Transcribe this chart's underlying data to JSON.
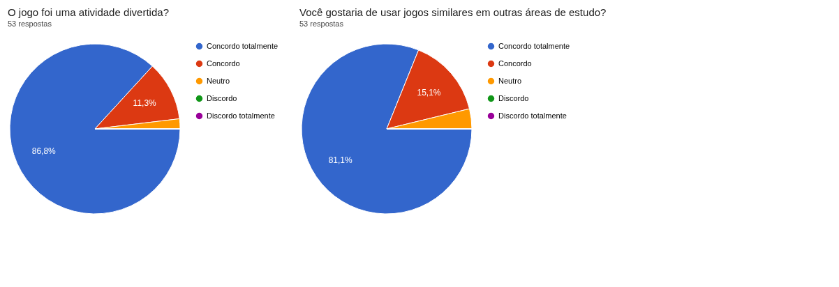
{
  "chart_data": [
    {
      "type": "pie",
      "title": "O jogo foi uma atividade divertida?",
      "subtitle": "53 respostas",
      "categories": [
        "Concordo totalmente",
        "Concordo",
        "Neutro",
        "Discordo",
        "Discordo totalmente"
      ],
      "values": [
        86.8,
        11.3,
        1.9,
        0,
        0
      ],
      "colors": [
        "#3366cc",
        "#dc3912",
        "#ff9900",
        "#109618",
        "#990099"
      ],
      "value_labels": [
        "86,8%",
        "11,3%",
        null,
        null,
        null
      ],
      "legend": "right"
    },
    {
      "type": "pie",
      "title": "Você gostaria de usar jogos similares em outras áreas de estudo?",
      "subtitle": "53 respostas",
      "categories": [
        "Concordo totalmente",
        "Concordo",
        "Neutro",
        "Discordo",
        "Discordo totalmente"
      ],
      "values": [
        81.1,
        15.1,
        3.8,
        0,
        0
      ],
      "colors": [
        "#3366cc",
        "#dc3912",
        "#ff9900",
        "#109618",
        "#990099"
      ],
      "value_labels": [
        "81,1%",
        "15,1%",
        null,
        null,
        null
      ],
      "legend": "right"
    }
  ]
}
